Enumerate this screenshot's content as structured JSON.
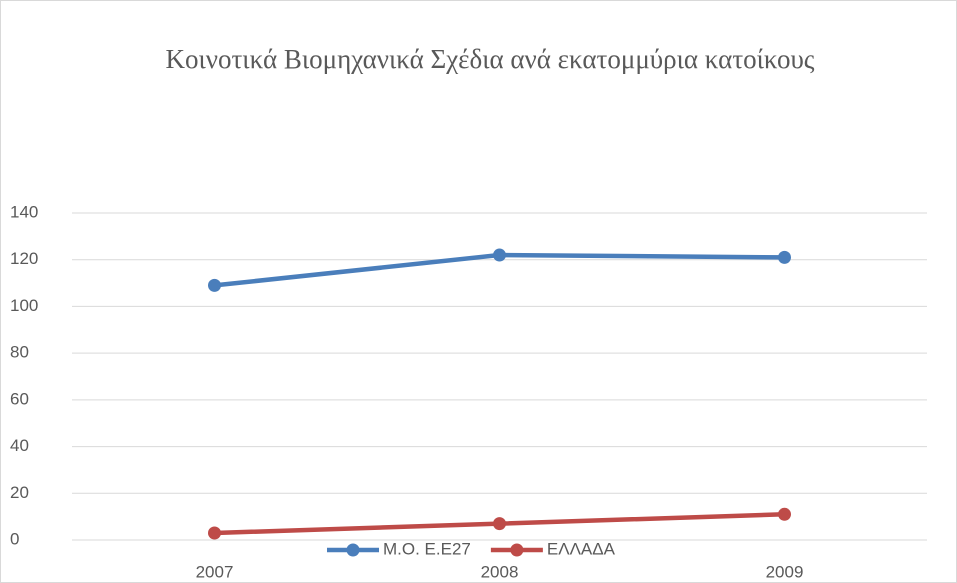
{
  "chart_data": {
    "type": "line",
    "title": "Κοινοτικά Βιομηχανικά Σχέδια ανά εκατομμύρια κατοίκους",
    "categories": [
      "2007",
      "2008",
      "2009"
    ],
    "series": [
      {
        "name": "Μ.Ο. Ε.Ε27",
        "color": "#4a7ebb",
        "values": [
          109,
          122,
          121
        ]
      },
      {
        "name": "ΕΛΛΑΔΑ",
        "color": "#be4b48",
        "values": [
          3,
          7,
          11
        ]
      }
    ],
    "ylim": [
      0,
      140
    ],
    "yticks": [
      0,
      20,
      40,
      60,
      80,
      100,
      120,
      140
    ],
    "grid": true,
    "legend": "bottom"
  }
}
